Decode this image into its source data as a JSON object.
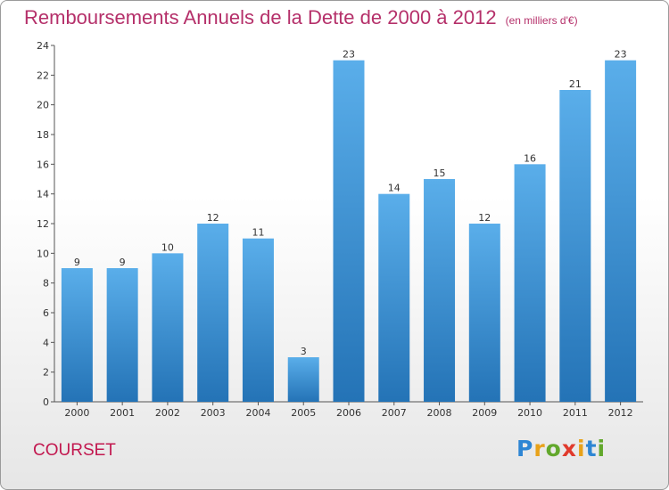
{
  "chart_data": {
    "type": "bar",
    "title": "Remboursements Annuels de la Dette de 2000 à 2012",
    "subtitle": "(en milliers d'€)",
    "categories": [
      "2000",
      "2001",
      "2002",
      "2003",
      "2004",
      "2005",
      "2006",
      "2007",
      "2008",
      "2009",
      "2010",
      "2011",
      "2012"
    ],
    "values": [
      9,
      9,
      10,
      12,
      11,
      3,
      23,
      14,
      15,
      12,
      16,
      21,
      23
    ],
    "ylim": [
      0,
      24
    ],
    "yticks": [
      0,
      2,
      4,
      6,
      8,
      10,
      12,
      14,
      16,
      18,
      20,
      22,
      24
    ],
    "grid": false,
    "legend": "none",
    "bar_color": "#3d8fd6"
  },
  "footer": {
    "commune": "COURSET",
    "brand": "Proxiti"
  },
  "colors": {
    "title": "#b5306a",
    "commune": "#c2184f",
    "bar_top": "#5aaeea",
    "bar_bottom": "#2473b6"
  }
}
